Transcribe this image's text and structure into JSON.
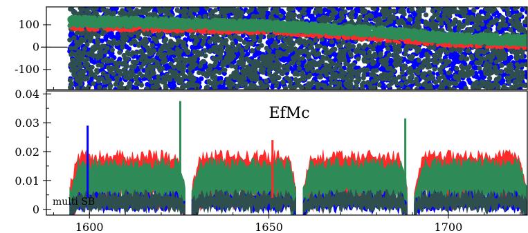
{
  "chart_data": [
    {
      "type": "scatter",
      "panel": "top",
      "ylim": [
        -190,
        180
      ],
      "xlim": [
        1588,
        1722
      ],
      "y_ticks": [
        100,
        0,
        -100
      ],
      "y_tick_labels": [
        "100",
        "0",
        "-100"
      ],
      "series": [
        {
          "color": "#0000ff",
          "kind": "scatter",
          "y_range": [
            -190,
            180
          ]
        },
        {
          "color": "#2f4f4f",
          "kind": "scatter",
          "y_range": [
            -190,
            180
          ]
        },
        {
          "color": "#ff2a2a",
          "kind": "band",
          "x": [
            1595,
            1620,
            1650,
            1680,
            1700,
            1722
          ],
          "y": [
            88,
            80,
            70,
            40,
            15,
            5
          ]
        },
        {
          "color": "#2e8b57",
          "kind": "band",
          "x": [
            1595,
            1620,
            1650,
            1680,
            1700,
            1722
          ],
          "y": [
            115,
            108,
            95,
            70,
            40,
            30
          ]
        }
      ]
    },
    {
      "type": "line",
      "panel": "bottom",
      "title": "EfMc",
      "annotation": "multi SB",
      "xlim": [
        1588,
        1722
      ],
      "ylim": [
        -0.002,
        0.041
      ],
      "x_ticks": [
        1600,
        1650,
        1700
      ],
      "x_tick_labels": [
        "1600",
        "1650",
        "1700"
      ],
      "y_ticks": [
        0,
        0.01,
        0.02,
        0.03,
        0.04
      ],
      "y_tick_labels": [
        "0",
        "0.01",
        "0.02",
        "0.03",
        "0.04"
      ],
      "segments": [
        [
          1594.5,
          1626.8
        ],
        [
          1628.5,
          1657.8
        ],
        [
          1659.5,
          1688.8
        ],
        [
          1690.5,
          1722
        ]
      ],
      "series": [
        {
          "color": "#ff2a2a",
          "level": 0.0175
        },
        {
          "color": "#2e8b57",
          "level": 0.015
        },
        {
          "color": "#0000ff",
          "level": 0.004
        },
        {
          "color": "#2f4f4f",
          "level": 0.0045
        }
      ],
      "spikes": [
        {
          "x": 1599.5,
          "y": 0.029,
          "color": "#0000ff"
        },
        {
          "x": 1625.3,
          "y": 0.0375,
          "color": "#2e8b57"
        },
        {
          "x": 1688.0,
          "y": 0.0315,
          "color": "#2e8b57"
        },
        {
          "x": 1651.0,
          "y": 0.024,
          "color": "#ff2a2a"
        }
      ]
    }
  ]
}
